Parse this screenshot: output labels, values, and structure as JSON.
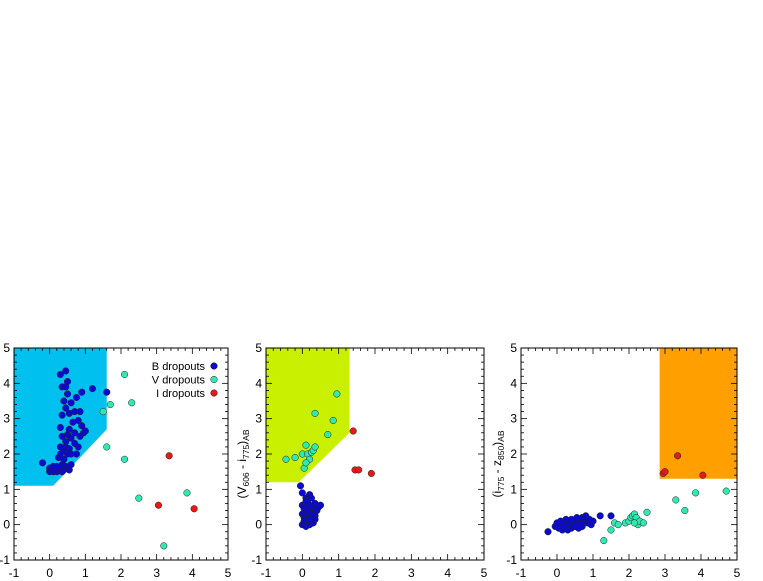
{
  "chart_data": [
    {
      "type": "scatter",
      "xlim": [
        -1,
        5
      ],
      "ylim": [
        -1,
        5
      ],
      "xticks": [
        "-1",
        "0",
        "1",
        "2",
        "3",
        "4",
        "5"
      ],
      "yticks": [
        "-1",
        "0",
        "1",
        "2",
        "3",
        "4",
        "5"
      ],
      "ylabel": "",
      "xlabel": "",
      "grid": false,
      "legend_position": "top-right",
      "selection_region": {
        "color": "#00c0f0",
        "polygon": [
          [
            -1,
            1.1
          ],
          [
            0.1,
            1.1
          ],
          [
            1.6,
            2.7
          ],
          [
            1.6,
            5.0
          ],
          [
            -1,
            5.0
          ]
        ]
      },
      "series": [
        {
          "name": "B dropouts",
          "color": "#0a0ad0",
          "points": [
            [
              -0.2,
              1.75
            ],
            [
              0.0,
              1.6
            ],
            [
              0.0,
              1.5
            ],
            [
              0.05,
              1.55
            ],
            [
              0.1,
              1.5
            ],
            [
              0.1,
              1.65
            ],
            [
              0.15,
              1.55
            ],
            [
              0.2,
              1.5
            ],
            [
              0.2,
              1.65
            ],
            [
              0.25,
              1.55
            ],
            [
              0.3,
              1.6
            ],
            [
              0.35,
              1.5
            ],
            [
              0.35,
              1.7
            ],
            [
              0.4,
              1.55
            ],
            [
              0.4,
              1.85
            ],
            [
              0.45,
              1.65
            ],
            [
              0.5,
              1.6
            ],
            [
              0.55,
              1.55
            ],
            [
              0.6,
              1.7
            ],
            [
              0.25,
              1.9
            ],
            [
              0.3,
              2.0
            ],
            [
              0.3,
              2.2
            ],
            [
              0.35,
              2.5
            ],
            [
              0.4,
              2.1
            ],
            [
              0.45,
              2.2
            ],
            [
              0.45,
              2.35
            ],
            [
              0.5,
              2.0
            ],
            [
              0.5,
              2.55
            ],
            [
              0.55,
              2.7
            ],
            [
              0.55,
              2.15
            ],
            [
              0.6,
              2.0
            ],
            [
              0.6,
              2.45
            ],
            [
              0.65,
              2.9
            ],
            [
              0.7,
              2.3
            ],
            [
              0.75,
              2.0
            ],
            [
              0.7,
              2.6
            ],
            [
              0.8,
              2.95
            ],
            [
              0.8,
              2.2
            ],
            [
              0.85,
              2.5
            ],
            [
              0.9,
              2.8
            ],
            [
              0.95,
              2.6
            ],
            [
              1.0,
              2.65
            ],
            [
              0.3,
              2.75
            ],
            [
              0.35,
              3.1
            ],
            [
              0.4,
              3.5
            ],
            [
              0.45,
              3.3
            ],
            [
              0.5,
              3.7
            ],
            [
              0.55,
              3.15
            ],
            [
              0.6,
              3.45
            ],
            [
              0.7,
              3.2
            ],
            [
              0.75,
              3.6
            ],
            [
              0.85,
              3.2
            ],
            [
              0.9,
              3.75
            ],
            [
              0.35,
              3.9
            ],
            [
              0.45,
              3.9
            ],
            [
              0.5,
              4.05
            ],
            [
              0.3,
              4.25
            ],
            [
              0.45,
              4.35
            ],
            [
              1.2,
              3.85
            ],
            [
              1.6,
              3.75
            ]
          ]
        },
        {
          "name": "V dropouts",
          "color": "#30e8b0",
          "points": [
            [
              1.5,
              3.2
            ],
            [
              1.7,
              3.4
            ],
            [
              1.6,
              2.2
            ],
            [
              2.1,
              4.25
            ],
            [
              2.3,
              3.45
            ],
            [
              2.1,
              1.85
            ],
            [
              2.5,
              0.75
            ],
            [
              3.85,
              0.9
            ],
            [
              3.2,
              -0.6
            ]
          ]
        },
        {
          "name": "I dropouts",
          "color": "#e81818",
          "points": [
            [
              3.35,
              1.95
            ],
            [
              3.05,
              0.55
            ],
            [
              4.05,
              0.45
            ]
          ]
        }
      ]
    },
    {
      "type": "scatter",
      "xlim": [
        -1,
        5
      ],
      "ylim": [
        -1,
        5
      ],
      "xticks": [
        "-1",
        "0",
        "1",
        "2",
        "3",
        "4",
        "5"
      ],
      "yticks": [
        "-1",
        "0",
        "1",
        "2",
        "3",
        "4",
        "5"
      ],
      "ylabel": "(V606 - i775)AB",
      "ylabel_parts": {
        "open": "(V",
        "sub1": "606",
        "mid": " - i",
        "sub2": "775",
        "close": ")",
        "sub3": "AB"
      },
      "xlabel": "",
      "grid": false,
      "selection_region": {
        "color": "#c8f000",
        "polygon": [
          [
            -1,
            1.2
          ],
          [
            -0.1,
            1.2
          ],
          [
            1.3,
            2.6
          ],
          [
            1.3,
            5.0
          ],
          [
            -1,
            5.0
          ]
        ]
      },
      "series": [
        {
          "name": "B dropouts",
          "color": "#0a0ad0",
          "points": [
            [
              -0.05,
              1.1
            ],
            [
              0.0,
              0.9
            ],
            [
              0.1,
              0.75
            ],
            [
              0.15,
              0.7
            ],
            [
              0.2,
              0.85
            ],
            [
              0.25,
              0.75
            ],
            [
              0.0,
              0.55
            ],
            [
              0.05,
              0.45
            ],
            [
              0.1,
              0.5
            ],
            [
              0.15,
              0.6
            ],
            [
              0.2,
              0.55
            ],
            [
              0.25,
              0.45
            ],
            [
              0.3,
              0.5
            ],
            [
              0.35,
              0.6
            ],
            [
              0.4,
              0.4
            ],
            [
              0.45,
              0.5
            ],
            [
              0.5,
              0.55
            ],
            [
              0.0,
              0.3
            ],
            [
              0.05,
              0.2
            ],
            [
              0.1,
              0.25
            ],
            [
              0.15,
              0.35
            ],
            [
              0.2,
              0.3
            ],
            [
              0.25,
              0.2
            ],
            [
              0.3,
              0.3
            ],
            [
              0.35,
              0.25
            ],
            [
              0.0,
              0.0
            ],
            [
              0.05,
              0.1
            ],
            [
              0.1,
              -0.05
            ],
            [
              0.15,
              0.05
            ],
            [
              0.2,
              0.0
            ],
            [
              0.25,
              0.1
            ],
            [
              0.3,
              0.05
            ],
            [
              0.35,
              0.15
            ],
            [
              0.1,
              0.15
            ],
            [
              0.2,
              0.15
            ],
            [
              0.1,
              0.65
            ]
          ]
        },
        {
          "name": "V dropouts",
          "color": "#30e8b0",
          "points": [
            [
              -0.45,
              1.85
            ],
            [
              -0.2,
              1.9
            ],
            [
              0.0,
              2.0
            ],
            [
              0.1,
              2.25
            ],
            [
              0.15,
              2.0
            ],
            [
              0.2,
              1.85
            ],
            [
              0.25,
              2.05
            ],
            [
              0.3,
              2.1
            ],
            [
              0.05,
              1.6
            ],
            [
              0.1,
              1.75
            ],
            [
              0.35,
              2.2
            ],
            [
              0.35,
              3.15
            ],
            [
              0.7,
              2.55
            ],
            [
              0.85,
              2.95
            ],
            [
              0.95,
              3.7
            ]
          ]
        },
        {
          "name": "I dropouts",
          "color": "#e81818",
          "points": [
            [
              1.4,
              2.65
            ],
            [
              1.45,
              1.55
            ],
            [
              1.55,
              1.55
            ],
            [
              1.9,
              1.45
            ]
          ]
        }
      ]
    },
    {
      "type": "scatter",
      "xlim": [
        -1,
        5
      ],
      "ylim": [
        -1,
        5
      ],
      "xticks": [
        "-1",
        "0",
        "1",
        "2",
        "3",
        "4",
        "5"
      ],
      "yticks": [
        "-1",
        "0",
        "1",
        "2",
        "3",
        "4",
        "5"
      ],
      "ylabel": "(i775 - z850)AB",
      "ylabel_parts": {
        "open": "(i",
        "sub1": "775",
        "mid": " - z",
        "sub2": "850",
        "close": ")",
        "sub3": "AB"
      },
      "xlabel": "",
      "grid": false,
      "selection_region": {
        "color": "#ffa000",
        "polygon": [
          [
            2.85,
            1.3
          ],
          [
            5.0,
            1.3
          ],
          [
            5.0,
            5.0
          ],
          [
            2.85,
            5.0
          ]
        ]
      },
      "series": [
        {
          "name": "B dropouts",
          "color": "#0a0ad0",
          "points": [
            [
              -0.25,
              -0.2
            ],
            [
              -0.05,
              -0.05
            ],
            [
              0.0,
              0.05
            ],
            [
              0.05,
              -0.1
            ],
            [
              0.1,
              0.0
            ],
            [
              0.15,
              -0.15
            ],
            [
              0.2,
              0.05
            ],
            [
              0.25,
              -0.05
            ],
            [
              0.3,
              0.1
            ],
            [
              0.35,
              0.0
            ],
            [
              0.4,
              -0.1
            ],
            [
              0.45,
              0.05
            ],
            [
              0.5,
              0.1
            ],
            [
              0.55,
              0.0
            ],
            [
              0.6,
              0.15
            ],
            [
              0.65,
              0.05
            ],
            [
              0.7,
              -0.05
            ],
            [
              0.75,
              0.1
            ],
            [
              0.8,
              0.2
            ],
            [
              0.85,
              0.05
            ],
            [
              0.9,
              0.15
            ],
            [
              0.95,
              0.0
            ],
            [
              1.0,
              0.1
            ],
            [
              0.2,
              -0.1
            ],
            [
              0.3,
              -0.15
            ],
            [
              0.4,
              0.15
            ],
            [
              0.5,
              -0.05
            ],
            [
              0.6,
              -0.1
            ],
            [
              0.7,
              0.2
            ],
            [
              0.8,
              0.25
            ],
            [
              1.2,
              0.25
            ],
            [
              1.5,
              0.25
            ],
            [
              0.1,
              0.1
            ],
            [
              0.25,
              0.15
            ],
            [
              0.55,
              0.2
            ]
          ]
        },
        {
          "name": "V dropouts",
          "color": "#30e8b0",
          "points": [
            [
              1.3,
              -0.45
            ],
            [
              1.5,
              -0.15
            ],
            [
              1.6,
              0.05
            ],
            [
              1.7,
              0.0
            ],
            [
              1.9,
              0.05
            ],
            [
              2.0,
              0.1
            ],
            [
              2.05,
              0.2
            ],
            [
              2.1,
              0.25
            ],
            [
              2.15,
              0.3
            ],
            [
              2.2,
              0.2
            ],
            [
              2.25,
              0.0
            ],
            [
              2.3,
              0.1
            ],
            [
              2.4,
              0.05
            ],
            [
              2.5,
              0.35
            ],
            [
              2.15,
              0.05
            ],
            [
              3.3,
              0.7
            ],
            [
              3.55,
              0.4
            ],
            [
              3.85,
              0.9
            ],
            [
              4.7,
              0.95
            ]
          ]
        },
        {
          "name": "I dropouts",
          "color": "#e81818",
          "points": [
            [
              2.95,
              1.45
            ],
            [
              3.0,
              1.5
            ],
            [
              3.35,
              1.95
            ],
            [
              4.05,
              1.4
            ]
          ]
        }
      ]
    }
  ]
}
